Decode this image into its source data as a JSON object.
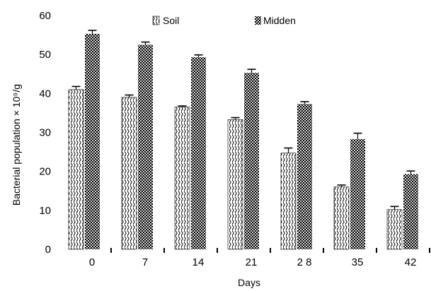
{
  "chart_data": {
    "type": "bar",
    "title": "",
    "xlabel": "Days",
    "ylabel": "Bacterial population × 10⁹/g",
    "categories": [
      "0",
      "7",
      "14",
      "21",
      "2 8",
      "35",
      "42"
    ],
    "yticks": [
      "0",
      "10",
      "20",
      "30",
      "40",
      "50",
      "60"
    ],
    "ylim": [
      0,
      60
    ],
    "grid": false,
    "legend_position": "top",
    "series": [
      {
        "name": "Soil",
        "values": [
          41,
          39,
          36.5,
          33.3,
          24.7,
          16,
          10.2
        ],
        "errors": [
          0.8,
          0.6,
          0.3,
          0.5,
          1.3,
          0.5,
          0.8
        ],
        "pattern": "wave",
        "color": "#000000"
      },
      {
        "name": "Midden",
        "values": [
          55.3,
          52.5,
          49.3,
          45.3,
          37.3,
          28.3,
          19.3
        ],
        "errors": [
          0.9,
          0.7,
          0.6,
          0.9,
          0.6,
          1.5,
          0.8
        ],
        "pattern": "checker",
        "color": "#000000"
      }
    ]
  }
}
